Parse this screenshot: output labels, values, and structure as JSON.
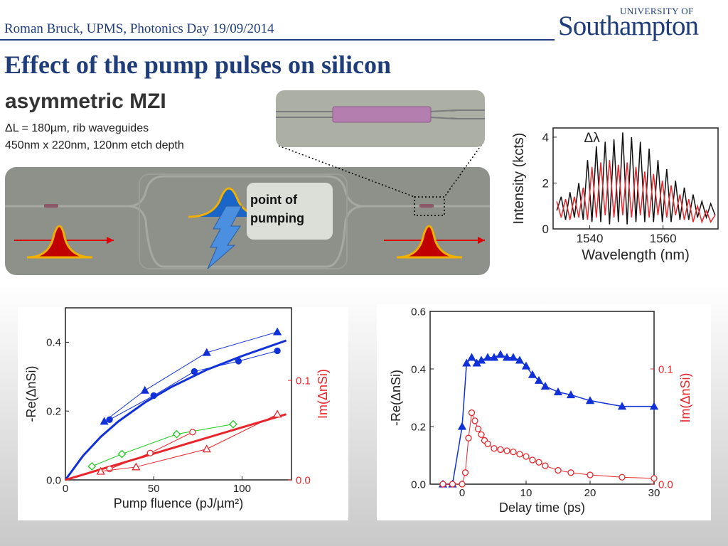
{
  "header": {
    "author_line": "Roman Bruck, UPMS, Photonics Day 19/09/2014",
    "logo_top": "UNIVERSITY OF",
    "logo_main": "Southampton"
  },
  "title": "Effect of the pump pulses on silicon",
  "subtitle": "asymmetric MZI",
  "notes": [
    "ΔL = 180µm, rib waveguides",
    "450nm x 220nm, 120nm etch depth"
  ],
  "diagram": {
    "label": "point of pumping"
  },
  "chart_data": [
    {
      "type": "line",
      "xlabel": "Wavelength (nm)",
      "ylabel": "Intensity (kcts)",
      "annotation": "Δλ",
      "xlim": [
        1530,
        1575
      ],
      "xticks": [
        1540,
        1560
      ],
      "ylim": [
        0,
        4.4
      ],
      "yticks": [
        0,
        2,
        4
      ],
      "x": [
        1531,
        1532.2,
        1533.4,
        1534.6,
        1535.8,
        1537,
        1538.2,
        1539.4,
        1540.6,
        1541.8,
        1543,
        1544.2,
        1545.4,
        1546.6,
        1547.8,
        1549,
        1550.2,
        1551.4,
        1552.6,
        1553.8,
        1555,
        1556.2,
        1557.4,
        1558.6,
        1559.8,
        1561,
        1562.2,
        1563.4,
        1564.6,
        1565.8,
        1567,
        1568.2,
        1569.4,
        1570.6,
        1571.8,
        1573,
        1574.2
      ],
      "series": [
        {
          "color": "#111111",
          "line_width": 1.5,
          "marker": "none",
          "values": [
            0.8,
            1.4,
            0.4,
            1.6,
            0.5,
            2.0,
            0.4,
            3.0,
            0.3,
            3.6,
            0.3,
            3.8,
            0.2,
            3.9,
            0.3,
            4.2,
            0.2,
            4.0,
            0.3,
            3.8,
            0.3,
            3.5,
            0.3,
            3.0,
            0.3,
            2.6,
            0.3,
            2.1,
            0.4,
            1.8,
            0.4,
            1.5,
            0.5,
            1.2,
            0.5,
            1.1,
            0.6
          ]
        },
        {
          "color": "#e8262b",
          "line_width": 1.5,
          "marker": "none",
          "values": [
            1.2,
            0.5,
            1.3,
            0.4,
            1.4,
            0.5,
            1.8,
            0.4,
            2.7,
            0.5,
            2.9,
            0.6,
            3.0,
            0.5,
            2.8,
            0.6,
            2.9,
            0.5,
            2.7,
            0.6,
            2.5,
            0.5,
            2.4,
            0.6,
            2.1,
            0.5,
            1.9,
            0.6,
            1.5,
            0.4,
            1.3,
            0.3,
            1.0,
            0.3,
            0.8,
            0.3,
            0.6
          ]
        }
      ]
    },
    {
      "type": "line",
      "xlabel": "Pump fluence (pJ/µm²)",
      "ylabel": "-Re(ΔnSi)",
      "y2label": "Im(ΔnSi)",
      "xlim": [
        0,
        128
      ],
      "xticks": [
        0,
        50,
        100
      ],
      "ylim": [
        0,
        0.5
      ],
      "yticks": [
        {
          "value": 0,
          "label": "0.0"
        },
        0.2,
        0.4
      ],
      "y2lim": [
        0,
        0.173
      ],
      "y2ticks": [
        {
          "value": 0,
          "label": "0.0"
        },
        0.1
      ],
      "series": [
        {
          "color": "#1030d8",
          "line_width": 3,
          "marker": "none",
          "x": [
            0,
            10,
            20,
            30,
            45,
            60,
            80,
            100,
            125
          ],
          "values": [
            0,
            0.07,
            0.125,
            0.17,
            0.225,
            0.27,
            0.32,
            0.36,
            0.405
          ]
        },
        {
          "color": "#1030d8",
          "line_width": 1,
          "marker": "triangle",
          "fill": "filled",
          "x": [
            22,
            45,
            80,
            120
          ],
          "values": [
            0.17,
            0.26,
            0.37,
            0.43
          ]
        },
        {
          "color": "#1030d8",
          "line_width": 1,
          "marker": "circle",
          "fill": "filled",
          "x": [
            25,
            50,
            73,
            98,
            120
          ],
          "values": [
            0.175,
            0.245,
            0.315,
            0.345,
            0.375
          ]
        },
        {
          "color": "#e8262b",
          "line_width": 3,
          "marker": "none",
          "axis": "y2",
          "x": [
            0,
            125
          ],
          "values": [
            0,
            0.066
          ]
        },
        {
          "color": "#22cc22",
          "line_width": 1,
          "marker": "diamond",
          "fill": "open",
          "axis": "y2",
          "x": [
            15,
            32,
            63,
            95
          ],
          "values": [
            0.0136,
            0.026,
            0.046,
            0.056
          ]
        },
        {
          "color": "#e8262b",
          "line_width": 1,
          "marker": "circle",
          "fill": "open",
          "axis": "y2",
          "x": [
            25,
            48,
            72
          ],
          "values": [
            0.011,
            0.027,
            0.048
          ]
        },
        {
          "color": "#e8262b",
          "line_width": 1,
          "marker": "triangle",
          "fill": "open",
          "axis": "y2",
          "x": [
            20,
            40,
            80,
            120
          ],
          "values": [
            0.0086,
            0.013,
            0.031,
            0.066
          ]
        }
      ]
    },
    {
      "type": "line",
      "xlabel": "Delay time (ps)",
      "ylabel": "-Re(ΔnSi)",
      "y2label": "Im(ΔnSi)",
      "xlim": [
        -5,
        30
      ],
      "xticks": [
        0,
        10,
        20,
        30
      ],
      "ylim": [
        0,
        0.6
      ],
      "yticks": [
        {
          "value": 0,
          "label": "0.0"
        },
        0.2,
        0.4,
        0.6
      ],
      "y2lim": [
        0,
        0.15
      ],
      "y2ticks": [
        {
          "value": 0,
          "label": "0.0"
        },
        0.1
      ],
      "series": [
        {
          "color": "#1030d8",
          "line_width": 1.5,
          "marker": "triangle",
          "fill": "filled",
          "x": [
            -3,
            -1.5,
            0,
            0.7,
            1.5,
            2.3,
            3,
            4,
            5,
            6,
            7,
            8,
            9,
            10,
            11,
            12,
            13,
            15,
            17,
            20,
            25,
            30
          ],
          "values": [
            0,
            0,
            0.2,
            0.42,
            0.44,
            0.42,
            0.43,
            0.44,
            0.44,
            0.45,
            0.44,
            0.44,
            0.43,
            0.41,
            0.38,
            0.36,
            0.34,
            0.32,
            0.31,
            0.29,
            0.27,
            0.27
          ]
        },
        {
          "color": "#e8262b",
          "line_width": 1,
          "marker": "circle",
          "fill": "open",
          "axis": "y2",
          "x": [
            -3,
            -1.5,
            0,
            0.5,
            1,
            1.5,
            2,
            2.5,
            3,
            3.5,
            4,
            5,
            6,
            7,
            8,
            9,
            10,
            11,
            12,
            13,
            15,
            17,
            20,
            25,
            30
          ],
          "values": [
            0,
            0,
            0,
            0.01,
            0.04,
            0.062,
            0.055,
            0.048,
            0.043,
            0.038,
            0.035,
            0.031,
            0.03,
            0.029,
            0.028,
            0.026,
            0.024,
            0.021,
            0.019,
            0.016,
            0.012,
            0.01,
            0.008,
            0.006,
            0.005
          ]
        }
      ]
    }
  ]
}
